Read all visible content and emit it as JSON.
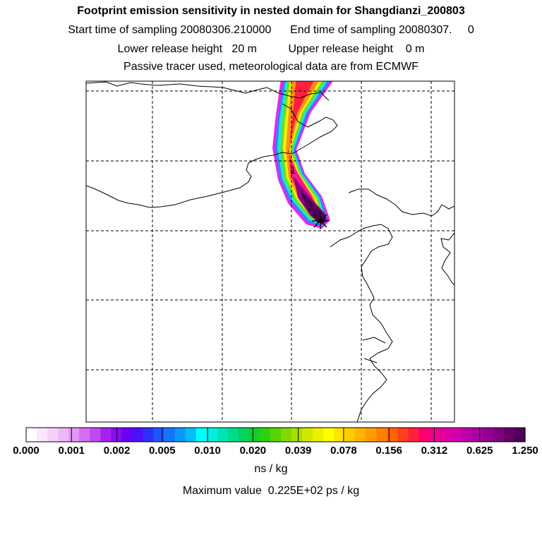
{
  "header": {
    "title": "Footprint emission sensitivity in nested domain for Shangdianzi_200803",
    "sampling_line": "Start time of sampling 20080306.210000      End time of sampling 20080307.     0",
    "release_line": "Lower release height   20 m          Upper release height    0 m",
    "tracer_line": "Passive tracer used, meteorological data are from ECMWF"
  },
  "chart_data": {
    "type": "heatmap",
    "title": "Footprint emission sensitivity in nested domain for Shangdianzi_200803",
    "xlabel": "",
    "ylabel": "",
    "colorbar": {
      "tick_labels": [
        "0.000",
        "0.001",
        "0.002",
        "0.005",
        "0.010",
        "0.020",
        "0.039",
        "0.078",
        "0.156",
        "0.312",
        "0.625",
        "1.250"
      ],
      "units": "ns / kg",
      "colors": [
        "#ffffff",
        "#fbe6fd",
        "#f6d0fb",
        "#f0b7f8",
        "#e595f6",
        "#d46ef3",
        "#c04af2",
        "#a820f0",
        "#8a0af2",
        "#6a00f4",
        "#4a10f8",
        "#2f2ffa",
        "#1f55fb",
        "#1475fb",
        "#0b97fb",
        "#04bdfa",
        "#00ffff",
        "#00f0e0",
        "#00e4b8",
        "#00dc8c",
        "#00d45a",
        "#10d030",
        "#30d010",
        "#58d400",
        "#80d800",
        "#a8e000",
        "#d0e800",
        "#eef000",
        "#ffff00",
        "#ffe400",
        "#ffcc00",
        "#ffb400",
        "#ff9c00",
        "#ff8000",
        "#ff6400",
        "#ff4020",
        "#ff2040",
        "#ff0070",
        "#f00090",
        "#e000a0",
        "#d000b0",
        "#be00aa",
        "#aa00a0",
        "#940090",
        "#7c0080",
        "#640068",
        "#50005a"
      ]
    },
    "maximum_value": "Maximum value  0.225E+02 ps / kg",
    "release_site": "Shangdianzi",
    "annotations": [
      "1"
    ],
    "grid": true
  }
}
